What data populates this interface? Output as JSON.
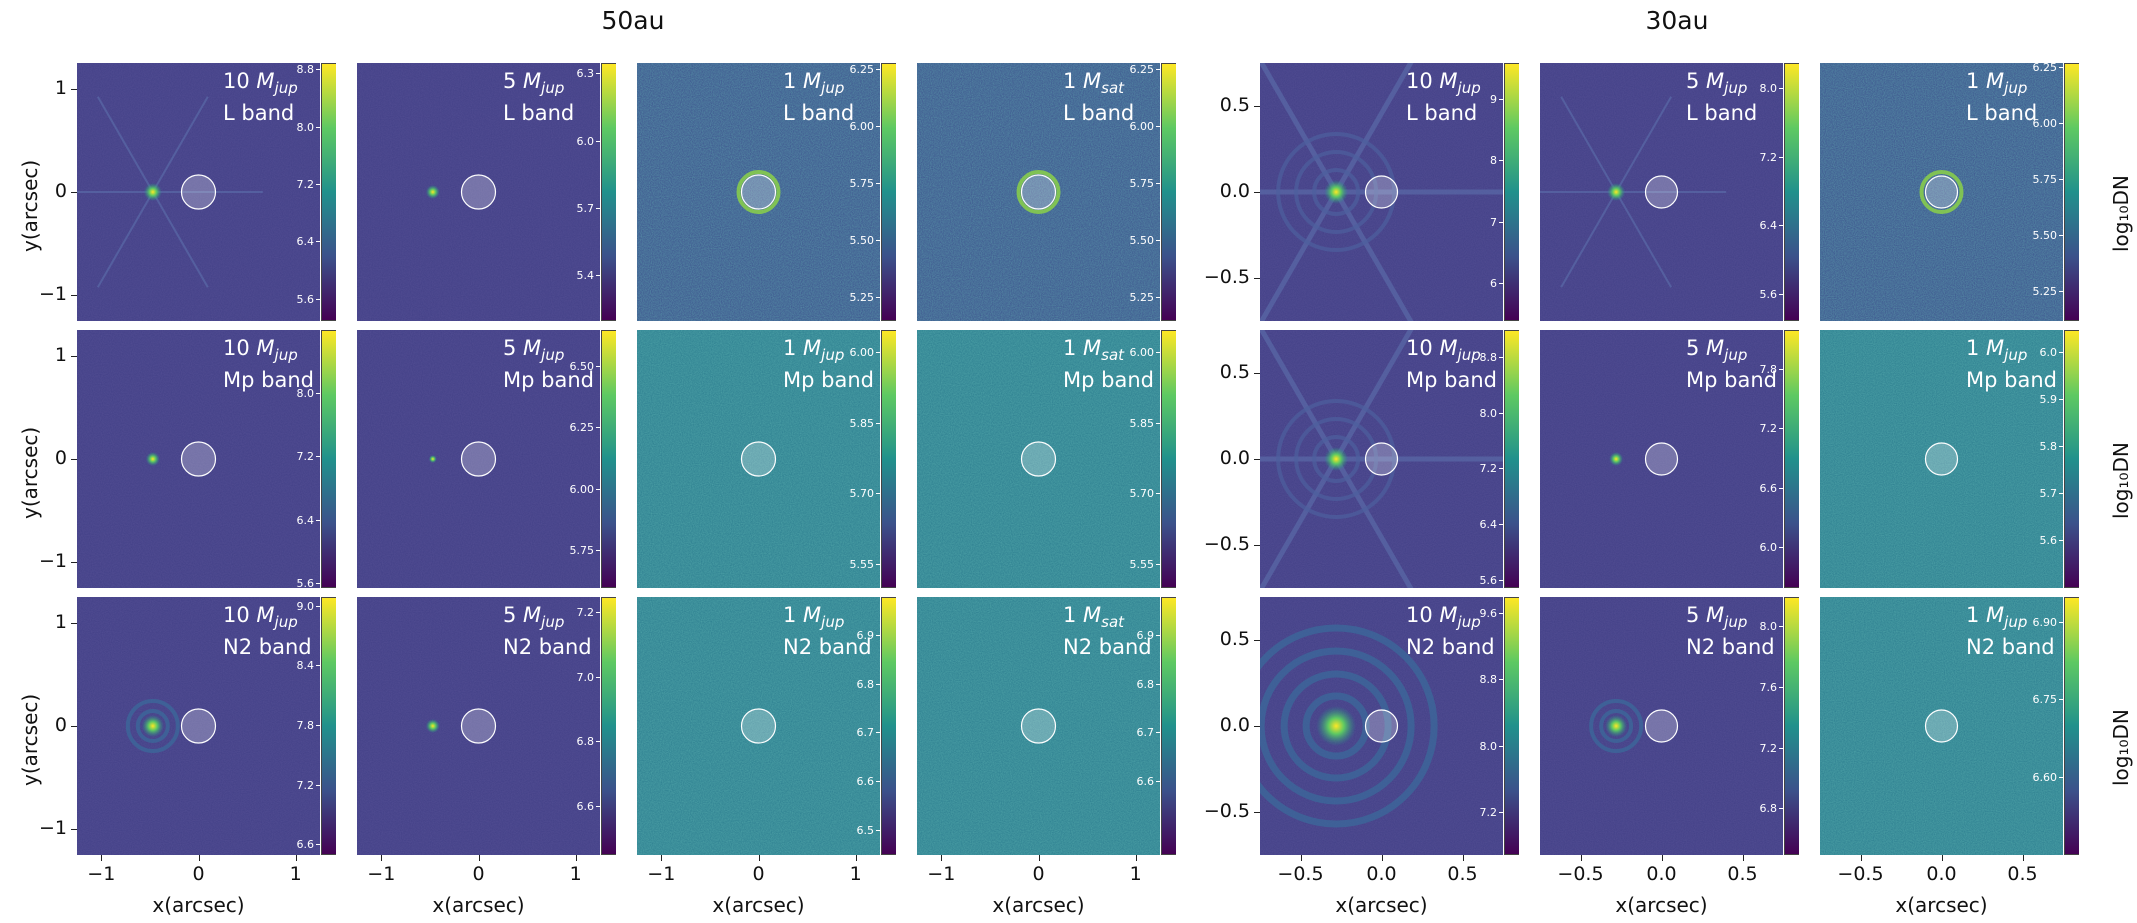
{
  "chart_data": {
    "type": "heatmap",
    "colormap": "viridis",
    "groups": [
      "50au",
      "30au"
    ],
    "ylabel": "y(arcsec)",
    "xlabel": "x(arcsec)",
    "colorbar_label": "log10DN",
    "colorbar_label_display": "log₁₀DN",
    "x_ticks_50au": [
      "−1",
      "0",
      "1"
    ],
    "y_ticks_50au": [
      "1",
      "0",
      "−1"
    ],
    "x_ticks_30au": [
      "−0.5",
      "0.0",
      "0.5"
    ],
    "y_ticks_30au": [
      "0.5",
      "0.0",
      "−0.5"
    ],
    "xlim_50au": [
      -1.25,
      1.25
    ],
    "ylim_50au": [
      -1.25,
      1.25
    ],
    "xlim_30au": [
      -0.75,
      0.75
    ],
    "ylim_30au": [
      -0.75,
      0.75
    ],
    "rows": [
      {
        "band": "L band",
        "panels": [
          {
            "group": "50au",
            "mass_num": "10",
            "mass_sym": "M",
            "mass_sub": "jup",
            "planet_x": -0.47,
            "psf": "spiky",
            "colorbar_ticks": [
              "8.8",
              "8.0",
              "7.2",
              "6.4",
              "5.6"
            ],
            "colorbar_range": [
              5.3,
              8.9
            ]
          },
          {
            "group": "50au",
            "mass_num": "5",
            "mass_sym": "M",
            "mass_sub": "jup",
            "planet_x": -0.47,
            "psf": "dot",
            "colorbar_ticks": [
              "6.3",
              "6.0",
              "5.7",
              "5.4"
            ],
            "colorbar_range": [
              5.2,
              6.35
            ]
          },
          {
            "group": "50au",
            "mass_num": "1",
            "mass_sym": "M",
            "mass_sub": "jup",
            "planet_x": null,
            "psf": "none",
            "colorbar_ticks": [
              "6.25",
              "6.00",
              "5.75",
              "5.50",
              "5.25"
            ],
            "colorbar_range": [
              5.15,
              6.28
            ]
          },
          {
            "group": "50au",
            "mass_num": "1",
            "mass_sym": "M",
            "mass_sub": "sat",
            "planet_x": null,
            "psf": "none",
            "colorbar_ticks": [
              "6.25",
              "6.00",
              "5.75",
              "5.50",
              "5.25"
            ],
            "colorbar_range": [
              5.15,
              6.28
            ]
          },
          {
            "group": "30au",
            "mass_num": "10",
            "mass_sym": "M",
            "mass_sub": "jup",
            "planet_x": -0.28,
            "psf": "hexagon-spiky",
            "colorbar_ticks": [
              "9",
              "8",
              "7",
              "6"
            ],
            "colorbar_range": [
              5.4,
              9.6
            ]
          },
          {
            "group": "30au",
            "mass_num": "5",
            "mass_sym": "M",
            "mass_sub": "jup",
            "planet_x": -0.28,
            "psf": "spiky",
            "colorbar_ticks": [
              "8.0",
              "7.2",
              "6.4",
              "5.6"
            ],
            "colorbar_range": [
              5.3,
              8.3
            ]
          },
          {
            "group": "30au",
            "mass_num": "1",
            "mass_sym": "M",
            "mass_sub": "jup",
            "planet_x": null,
            "psf": "none",
            "colorbar_ticks": [
              "6.25",
              "6.00",
              "5.75",
              "5.50",
              "5.25"
            ],
            "colorbar_range": [
              5.12,
              6.27
            ]
          }
        ]
      },
      {
        "band": "Mp band",
        "panels": [
          {
            "group": "50au",
            "mass_num": "10",
            "mass_sym": "M",
            "mass_sub": "jup",
            "planet_x": -0.47,
            "psf": "dot",
            "colorbar_ticks": [
              "8.0",
              "7.2",
              "6.4",
              "5.6"
            ],
            "colorbar_range": [
              5.55,
              8.8
            ]
          },
          {
            "group": "50au",
            "mass_num": "5",
            "mass_sym": "M",
            "mass_sub": "jup",
            "planet_x": -0.47,
            "psf": "tiny",
            "colorbar_ticks": [
              "6.50",
              "6.25",
              "6.00",
              "5.75"
            ],
            "colorbar_range": [
              5.6,
              6.65
            ]
          },
          {
            "group": "50au",
            "mass_num": "1",
            "mass_sym": "M",
            "mass_sub": "jup",
            "planet_x": null,
            "psf": "none",
            "colorbar_ticks": [
              "6.00",
              "5.85",
              "5.70",
              "5.55"
            ],
            "colorbar_range": [
              5.5,
              6.05
            ]
          },
          {
            "group": "50au",
            "mass_num": "1",
            "mass_sym": "M",
            "mass_sub": "sat",
            "planet_x": null,
            "psf": "none",
            "colorbar_ticks": [
              "6.00",
              "5.85",
              "5.70",
              "5.55"
            ],
            "colorbar_range": [
              5.5,
              6.05
            ]
          },
          {
            "group": "30au",
            "mass_num": "10",
            "mass_sym": "M",
            "mass_sub": "jup",
            "planet_x": -0.28,
            "psf": "hexagon-spiky",
            "colorbar_ticks": [
              "8.8",
              "8.0",
              "7.2",
              "6.4",
              "5.6"
            ],
            "colorbar_range": [
              5.5,
              9.2
            ]
          },
          {
            "group": "30au",
            "mass_num": "5",
            "mass_sym": "M",
            "mass_sub": "jup",
            "planet_x": -0.28,
            "psf": "dot",
            "colorbar_ticks": [
              "7.8",
              "7.2",
              "6.6",
              "6.0"
            ],
            "colorbar_range": [
              5.6,
              8.2
            ]
          },
          {
            "group": "30au",
            "mass_num": "1",
            "mass_sym": "M",
            "mass_sub": "jup",
            "planet_x": null,
            "psf": "none",
            "colorbar_ticks": [
              "6.0",
              "5.9",
              "5.8",
              "5.7",
              "5.6"
            ],
            "colorbar_range": [
              5.5,
              6.05
            ]
          }
        ]
      },
      {
        "band": "N2 band",
        "panels": [
          {
            "group": "50au",
            "mass_num": "10",
            "mass_sym": "M",
            "mass_sub": "jup",
            "planet_x": -0.47,
            "psf": "rings",
            "colorbar_ticks": [
              "9.0",
              "8.4",
              "7.8",
              "7.2",
              "6.6"
            ],
            "colorbar_range": [
              6.5,
              9.1
            ]
          },
          {
            "group": "50au",
            "mass_num": "5",
            "mass_sym": "M",
            "mass_sub": "jup",
            "planet_x": -0.47,
            "psf": "dot",
            "colorbar_ticks": [
              "7.2",
              "7.0",
              "6.8",
              "6.6"
            ],
            "colorbar_range": [
              6.45,
              7.25
            ]
          },
          {
            "group": "50au",
            "mass_num": "1",
            "mass_sym": "M",
            "mass_sub": "jup",
            "planet_x": null,
            "psf": "none",
            "colorbar_ticks": [
              "6.9",
              "6.8",
              "6.7",
              "6.6",
              "6.5"
            ],
            "colorbar_range": [
              6.45,
              6.98
            ]
          },
          {
            "group": "50au",
            "mass_num": "1",
            "mass_sym": "M",
            "mass_sub": "sat",
            "planet_x": null,
            "psf": "none",
            "colorbar_ticks": [
              "6.9",
              "6.8",
              "6.7",
              "6.6"
            ],
            "colorbar_range": [
              6.45,
              6.98
            ]
          },
          {
            "group": "30au",
            "mass_num": "10",
            "mass_sym": "M",
            "mass_sub": "jup",
            "planet_x": -0.28,
            "psf": "big-rings",
            "colorbar_ticks": [
              "9.6",
              "8.8",
              "8.0",
              "7.2"
            ],
            "colorbar_range": [
              6.7,
              9.8
            ]
          },
          {
            "group": "30au",
            "mass_num": "5",
            "mass_sym": "M",
            "mass_sub": "jup",
            "planet_x": -0.28,
            "psf": "rings",
            "colorbar_ticks": [
              "8.0",
              "7.6",
              "7.2",
              "6.8"
            ],
            "colorbar_range": [
              6.5,
              8.2
            ]
          },
          {
            "group": "30au",
            "mass_num": "1",
            "mass_sym": "M",
            "mass_sub": "jup",
            "planet_x": null,
            "psf": "none",
            "colorbar_ticks": [
              "6.90",
              "6.75",
              "6.60"
            ],
            "colorbar_range": [
              6.45,
              6.95
            ]
          }
        ]
      }
    ]
  }
}
